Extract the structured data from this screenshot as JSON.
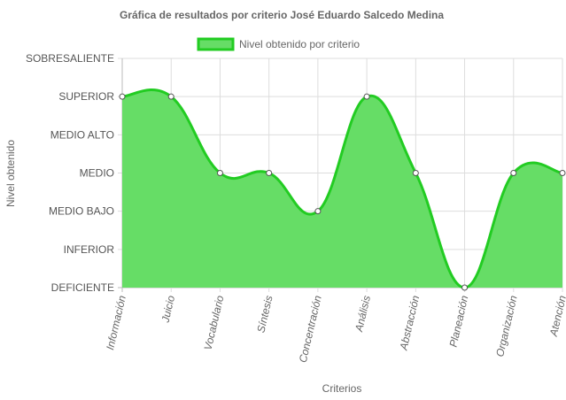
{
  "chart_data": {
    "type": "area",
    "title": "Gráfica de resultados por criterio José Eduardo Salcedo Medina",
    "xlabel": "Criterios",
    "ylabel": "Nivel obtenido",
    "y_levels": [
      "DEFICIENTE",
      "INFERIOR",
      "MEDIO BAJO",
      "MEDIO",
      "MEDIO ALTO",
      "SUPERIOR",
      "SOBRESALIENTE"
    ],
    "categories": [
      "Información",
      "Juicio",
      "Vocabulario",
      "Síntesis",
      "Concentración",
      "Análisis",
      "Abstracción",
      "Planeación",
      "Organización",
      "Atención"
    ],
    "series": [
      {
        "name": "Nivel obtenido por criterio",
        "values": [
          "SUPERIOR",
          "SUPERIOR",
          "MEDIO",
          "MEDIO",
          "MEDIO BAJO",
          "SUPERIOR",
          "MEDIO",
          "DEFICIENTE",
          "MEDIO",
          "MEDIO"
        ]
      }
    ],
    "legend_position": "top",
    "grid": true,
    "colors": {
      "fill": "#66dd66",
      "line": "#22cc22",
      "point_fill": "#ffffff",
      "point_stroke": "#555555",
      "grid": "#dddddd"
    }
  }
}
